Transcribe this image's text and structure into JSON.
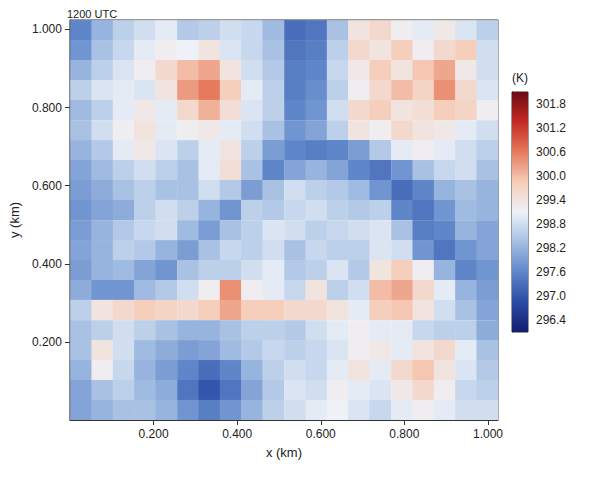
{
  "chart_data": {
    "type": "heatmap",
    "title": "1200 UTC",
    "x_label": "x (km)",
    "y_label": "y (km)",
    "xlim": [
      0,
      1.024
    ],
    "ylim": [
      0,
      1.024
    ],
    "xticks": [
      {
        "value": 0.2,
        "label": "0.200"
      },
      {
        "value": 0.4,
        "label": "0.400"
      },
      {
        "value": 0.6,
        "label": "0.600"
      },
      {
        "value": 0.8,
        "label": "0.800"
      },
      {
        "value": 1.0,
        "label": "1.000"
      }
    ],
    "yticks": [
      {
        "value": 0.2,
        "label": "0.200"
      },
      {
        "value": 0.4,
        "label": "0.400"
      },
      {
        "value": 0.6,
        "label": "0.600"
      },
      {
        "value": 0.8,
        "label": "0.800"
      },
      {
        "value": 1.0,
        "label": "1.000"
      }
    ],
    "x": [
      0.026,
      0.077,
      0.128,
      0.179,
      0.23,
      0.282,
      0.333,
      0.384,
      0.435,
      0.486,
      0.538,
      0.589,
      0.64,
      0.691,
      0.742,
      0.794,
      0.845,
      0.896,
      0.947,
      0.998
    ],
    "y": [
      0.998,
      0.947,
      0.896,
      0.845,
      0.794,
      0.742,
      0.691,
      0.64,
      0.589,
      0.538,
      0.486,
      0.435,
      0.384,
      0.333,
      0.282,
      0.23,
      0.179,
      0.128,
      0.077,
      0.026
    ],
    "values": [
      [
        297.6,
        298.2,
        298.6,
        298.8,
        299.0,
        298.5,
        298.6,
        298.8,
        298.7,
        298.3,
        297.3,
        297.4,
        298.4,
        299.4,
        299.6,
        299.2,
        299.0,
        299.3,
        298.9,
        298.6
      ],
      [
        297.8,
        298.4,
        298.7,
        299.0,
        299.2,
        299.1,
        299.4,
        298.9,
        298.7,
        298.4,
        297.4,
        297.5,
        298.6,
        299.6,
        299.4,
        299.8,
        299.2,
        299.6,
        299.8,
        298.8
      ],
      [
        298.2,
        298.6,
        298.9,
        299.2,
        299.6,
        300.0,
        300.2,
        299.4,
        298.8,
        298.5,
        297.5,
        297.6,
        298.7,
        299.3,
        299.8,
        299.4,
        299.9,
        300.2,
        299.3,
        298.8
      ],
      [
        298.6,
        298.9,
        299.0,
        298.9,
        299.4,
        300.3,
        300.6,
        299.8,
        299.0,
        298.6,
        297.5,
        297.7,
        298.6,
        299.2,
        299.6,
        300.0,
        299.7,
        300.4,
        299.6,
        298.9
      ],
      [
        298.3,
        298.6,
        299.0,
        299.3,
        299.0,
        299.6,
        300.1,
        299.5,
        298.9,
        298.6,
        297.6,
        297.8,
        298.8,
        299.6,
        299.8,
        299.4,
        299.5,
        299.8,
        299.7,
        299.2
      ],
      [
        298.4,
        298.8,
        299.2,
        299.4,
        299.0,
        299.2,
        299.3,
        299.0,
        298.8,
        298.4,
        297.8,
        298.0,
        298.6,
        299.4,
        299.2,
        299.6,
        299.4,
        299.3,
        299.0,
        298.8
      ],
      [
        298.2,
        298.5,
        299.0,
        299.3,
        298.9,
        298.6,
        299.0,
        299.4,
        298.6,
        297.9,
        297.6,
        297.5,
        297.6,
        297.9,
        298.5,
        299.0,
        299.2,
        299.0,
        298.8,
        298.6
      ],
      [
        298.0,
        298.3,
        298.6,
        298.8,
        298.6,
        298.4,
        299.0,
        299.5,
        298.4,
        297.6,
        298.0,
        298.2,
        298.0,
        297.6,
        297.4,
        297.8,
        298.4,
        298.7,
        298.8,
        298.4
      ],
      [
        297.9,
        298.1,
        298.4,
        298.6,
        298.4,
        298.4,
        298.8,
        298.5,
        297.9,
        298.4,
        298.8,
        298.6,
        298.5,
        298.3,
        297.8,
        297.3,
        297.6,
        298.2,
        298.4,
        298.2
      ],
      [
        297.8,
        298.0,
        298.1,
        298.6,
        298.8,
        298.6,
        298.2,
        297.8,
        298.6,
        298.5,
        298.7,
        298.8,
        298.6,
        298.5,
        298.6,
        297.6,
        297.4,
        297.8,
        298.3,
        298.2
      ],
      [
        297.9,
        298.2,
        298.5,
        298.7,
        298.8,
        298.3,
        297.9,
        298.4,
        298.6,
        298.9,
        298.8,
        298.6,
        298.7,
        298.8,
        298.9,
        298.4,
        297.5,
        297.6,
        298.2,
        298.0
      ],
      [
        298.0,
        298.2,
        298.6,
        298.5,
        298.2,
        297.9,
        298.4,
        298.7,
        298.6,
        298.8,
        298.4,
        298.7,
        298.6,
        298.6,
        298.9,
        298.8,
        297.8,
        297.4,
        297.8,
        298.0
      ],
      [
        297.9,
        298.2,
        298.3,
        298.0,
        297.8,
        298.4,
        298.6,
        298.6,
        298.8,
        299.0,
        298.5,
        298.6,
        298.9,
        298.5,
        299.4,
        299.8,
        299.2,
        298.2,
        297.6,
        297.8
      ],
      [
        298.1,
        297.8,
        297.8,
        298.3,
        298.5,
        298.8,
        299.2,
        300.4,
        299.2,
        299.0,
        298.7,
        299.4,
        298.6,
        298.8,
        300.0,
        300.2,
        299.6,
        299.0,
        298.2,
        297.9
      ],
      [
        298.6,
        299.4,
        299.6,
        299.8,
        299.7,
        299.6,
        299.8,
        300.2,
        299.8,
        299.8,
        299.6,
        299.6,
        299.4,
        299.0,
        299.8,
        299.9,
        299.4,
        298.8,
        298.4,
        298.0
      ],
      [
        298.4,
        298.6,
        298.8,
        298.6,
        298.4,
        298.2,
        298.2,
        298.4,
        298.6,
        298.6,
        298.5,
        298.8,
        299.0,
        299.2,
        299.0,
        299.0,
        298.7,
        298.6,
        298.6,
        298.1
      ],
      [
        298.4,
        299.4,
        298.8,
        298.3,
        298.1,
        297.9,
        298.0,
        298.3,
        298.5,
        298.7,
        298.6,
        298.7,
        298.9,
        299.2,
        299.3,
        299.0,
        299.4,
        299.6,
        299.0,
        298.4
      ],
      [
        298.2,
        299.2,
        298.7,
        298.2,
        297.9,
        297.6,
        297.3,
        297.6,
        298.2,
        298.6,
        298.8,
        298.7,
        299.0,
        299.4,
        299.0,
        299.6,
        299.9,
        299.4,
        298.9,
        298.5
      ],
      [
        298.0,
        298.4,
        298.6,
        298.3,
        298.1,
        297.4,
        297.0,
        297.4,
        298.0,
        298.5,
        298.9,
        298.8,
        299.2,
        299.0,
        298.9,
        299.3,
        299.6,
        299.2,
        298.7,
        298.6
      ],
      [
        298.0,
        298.2,
        298.4,
        298.4,
        298.2,
        297.8,
        297.5,
        297.8,
        298.2,
        298.6,
        298.8,
        299.0,
        299.1,
        298.9,
        298.7,
        299.0,
        299.2,
        299.0,
        298.8,
        298.8
      ]
    ],
    "colorbar": {
      "label": "(K)",
      "lim": [
        296.1,
        302.1
      ],
      "ticks": [
        296.4,
        {
          "value": 297.0,
          "label": "297.0"
        },
        297.6,
        298.2,
        298.8,
        299.4,
        {
          "value": 300.0,
          "label": "300.0"
        },
        300.6,
        301.2,
        301.8
      ]
    }
  }
}
